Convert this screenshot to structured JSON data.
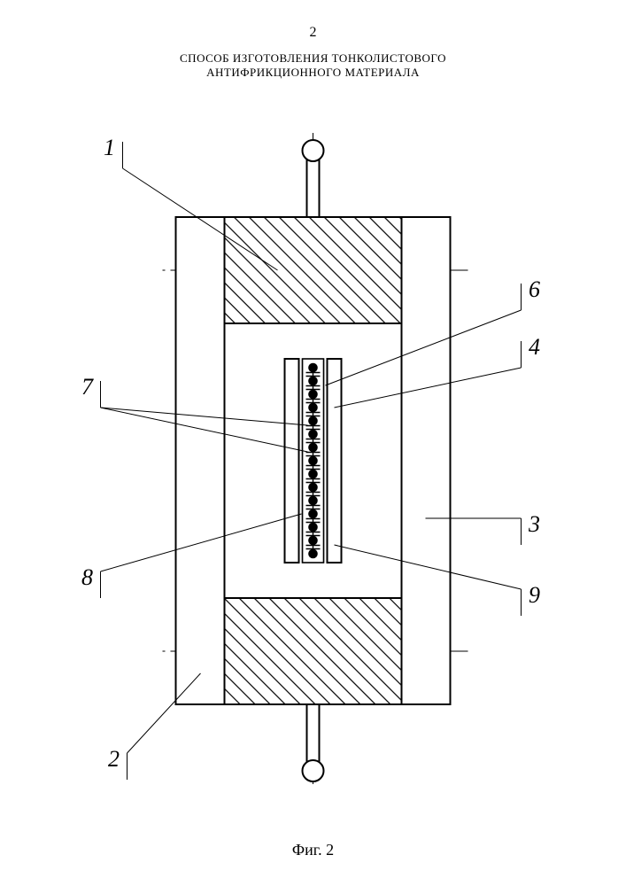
{
  "page_number": "2",
  "title_line1": "СПОСОБ ИЗГОТОВЛЕНИЯ ТОНКОЛИСТОВОГО",
  "title_line2": "АНТИФРИКЦИОННОГО МАТЕРИАЛА",
  "caption": "Фиг. 2",
  "labels": {
    "l1": "1",
    "l2": "2",
    "l3": "3",
    "l4": "4",
    "l6": "6",
    "l7": "7",
    "l8": "8",
    "l9": "9"
  },
  "colors": {
    "stroke": "#000000",
    "bg": "#ffffff",
    "hatch": "#000000"
  },
  "geometry": {
    "stroke_main": 2.0,
    "stroke_thin": 1.2,
    "stroke_leader": 1.0,
    "ball_count": 15,
    "ball_radius": 5.3
  }
}
